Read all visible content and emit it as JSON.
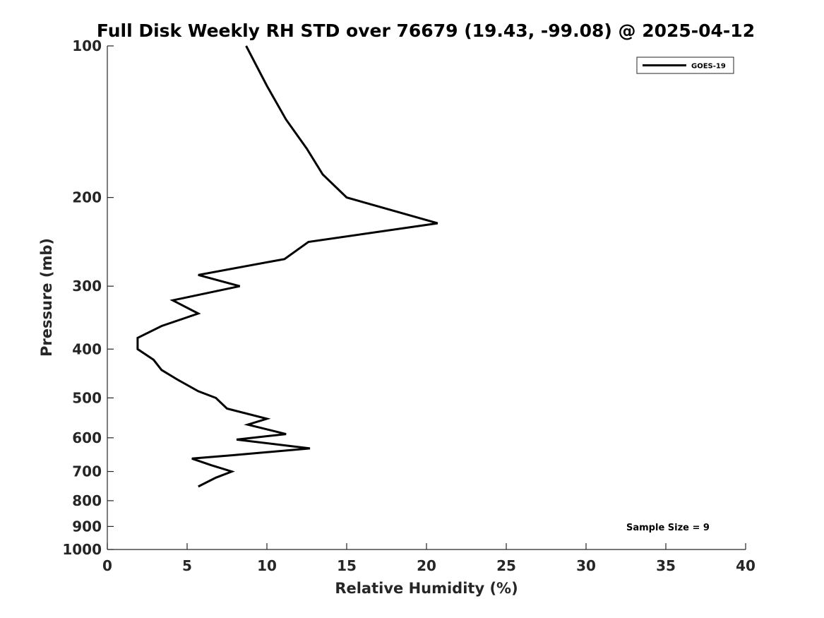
{
  "chart_data": {
    "type": "line",
    "title": "Full Disk Weekly RH STD over 76679 (19.43, -99.08) @ 2025-04-12",
    "xlabel": "Relative Humidity (%)",
    "ylabel": "Pressure (mb)",
    "xlim": [
      0,
      40
    ],
    "ylim": [
      100,
      1000
    ],
    "yscale": "log",
    "y_reversed": true,
    "grid": false,
    "legend_position": "top-right",
    "xticks": [
      0,
      5,
      10,
      15,
      20,
      25,
      30,
      35,
      40
    ],
    "xtick_labels": [
      "0",
      "5",
      "10",
      "15",
      "20",
      "25",
      "30",
      "35",
      "40"
    ],
    "yticks": [
      100,
      200,
      300,
      400,
      500,
      600,
      700,
      800,
      900,
      1000
    ],
    "ytick_labels": [
      "100",
      "200",
      "300",
      "400",
      "500",
      "600",
      "700",
      "800",
      "900",
      "1000"
    ],
    "annotation": "Sample Size = 9",
    "series": [
      {
        "name": "GOES-19",
        "color": "#000000",
        "x": [
          8.7,
          10.0,
          11.2,
          12.5,
          13.5,
          15.0,
          20.7,
          12.6,
          11.1,
          5.7,
          8.3,
          4.1,
          5.7,
          3.4,
          1.9,
          1.9,
          2.9,
          3.4,
          4.4,
          5.7,
          6.8,
          7.5,
          10.0,
          8.8,
          11.2,
          8.1,
          12.7,
          7.8,
          5.3,
          6.5,
          7.8,
          6.8,
          5.7
        ],
        "y": [
          100,
          120,
          140,
          160,
          180,
          200,
          225,
          245,
          265,
          285,
          300,
          320,
          340,
          360,
          380,
          400,
          420,
          440,
          460,
          485,
          500,
          525,
          550,
          565,
          590,
          605,
          630,
          650,
          660,
          680,
          700,
          720,
          750
        ]
      }
    ]
  }
}
